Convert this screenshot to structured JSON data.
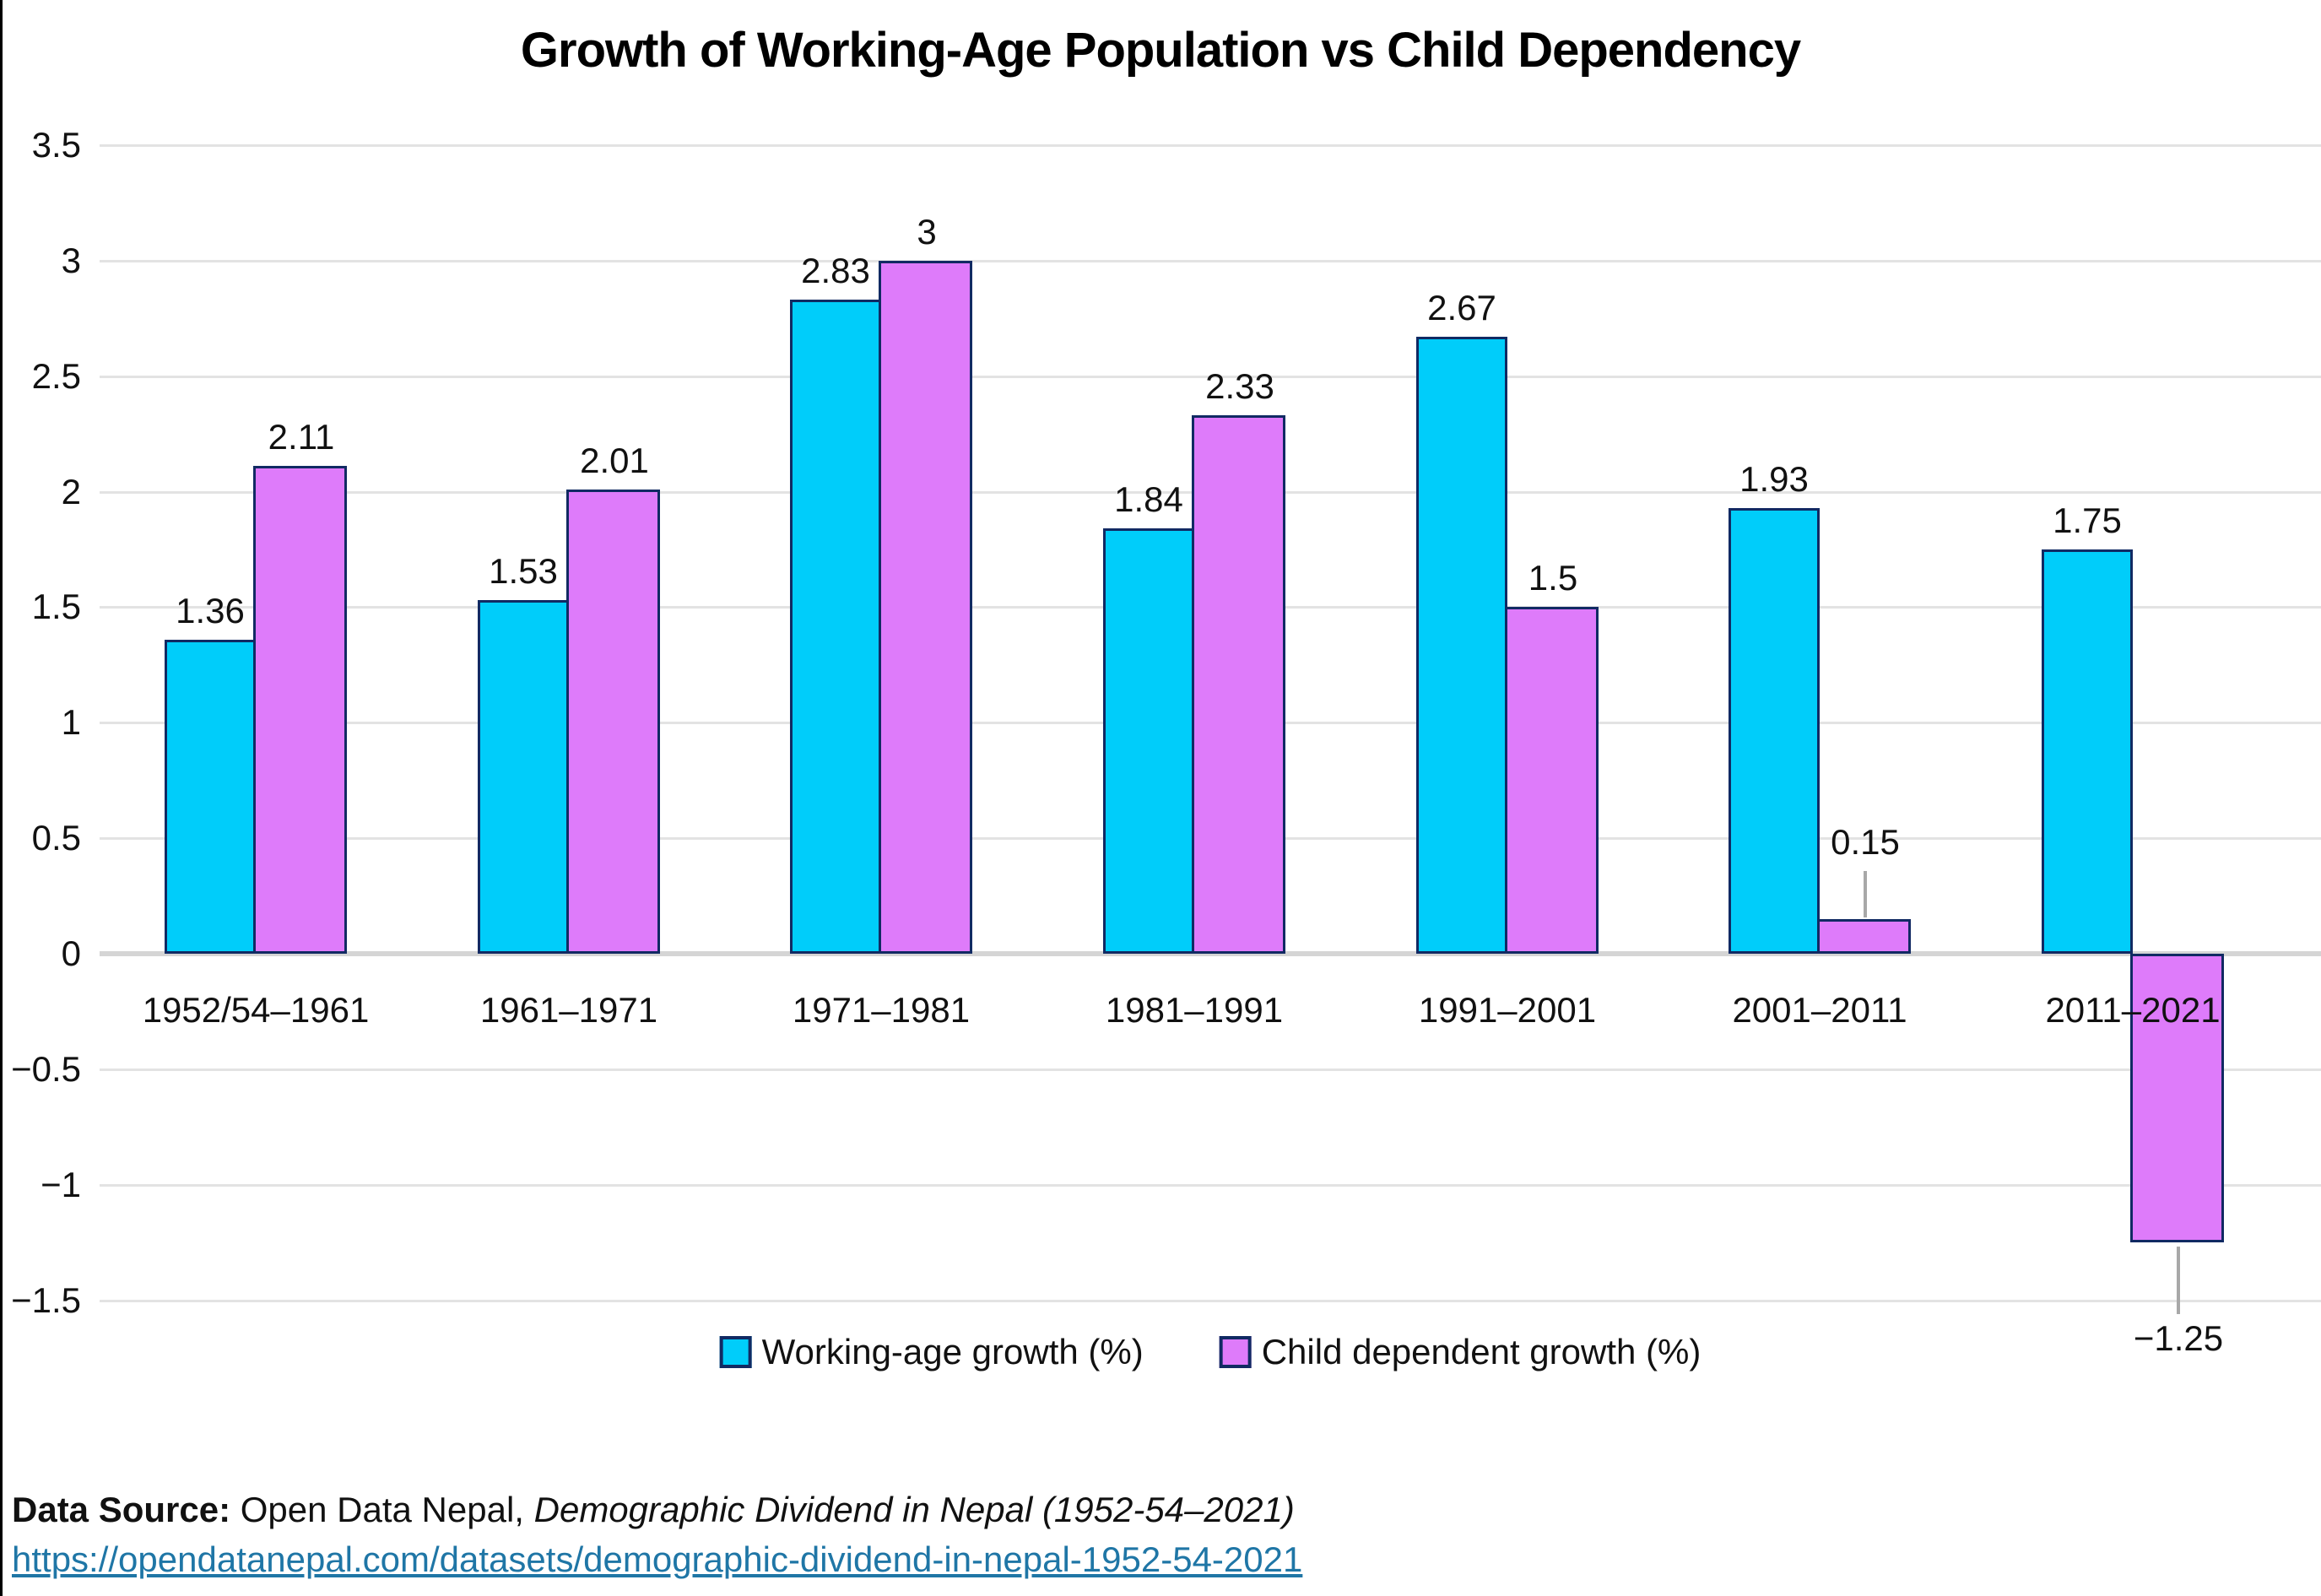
{
  "title": "Growth of Working-Age Population vs Child Dependency",
  "chart_data": {
    "type": "bar",
    "categories": [
      "1952/54–1961",
      "1961–1971",
      "1971–1981",
      "1981–1991",
      "1991–2001",
      "2001–2011",
      "2011–2021"
    ],
    "series": [
      {
        "name": "Working-age growth (%)",
        "color": "#00cdfa",
        "values": [
          1.36,
          1.53,
          2.83,
          1.84,
          2.67,
          1.93,
          1.75
        ],
        "labels": [
          "1.36",
          "1.53",
          "2.83",
          "1.84",
          "2.67",
          "1.93",
          "1.75"
        ]
      },
      {
        "name": "Child dependent growth (%)",
        "color": "#de7bfa",
        "values": [
          2.11,
          2.01,
          3,
          2.33,
          1.5,
          0.15,
          -1.25
        ],
        "labels": [
          "2.11",
          "2.01",
          "3",
          "2.33",
          "1.5",
          "0.15",
          "−1.25"
        ]
      }
    ],
    "title": "Growth of Working-Age Population vs Child Dependency",
    "xlabel": "",
    "ylabel": "",
    "ylim": [
      -1.5,
      3.5
    ],
    "ytick_step": 0.5,
    "ytick_labels": [
      "3.5",
      "3",
      "2.5",
      "2",
      "1.5",
      "1",
      "0.5",
      "0",
      "−0.5",
      "−1",
      "−1.5"
    ],
    "grid": true,
    "legend_position": "bottom",
    "bar_border_color": "#112a63",
    "gridline_color": "#e3e3e3",
    "zero_line_color": "#d5d5d5",
    "leader_line_color": "#a8a8a8"
  },
  "legend": {
    "items": [
      {
        "label": "Working-age growth (%)",
        "color": "#00cdfa"
      },
      {
        "label": "Child dependent growth (%)",
        "color": "#de7bfa"
      }
    ]
  },
  "footer": {
    "source_prefix": "Data Source:",
    "source_text": " Open Data Nepal, ",
    "source_italic": "Demographic Dividend in Nepal (1952-54–2021)",
    "link": "https://opendatanepal.com/datasets/demographic-dividend-in-nepal-1952-54-2021",
    "link_color": "#1f76a6"
  }
}
